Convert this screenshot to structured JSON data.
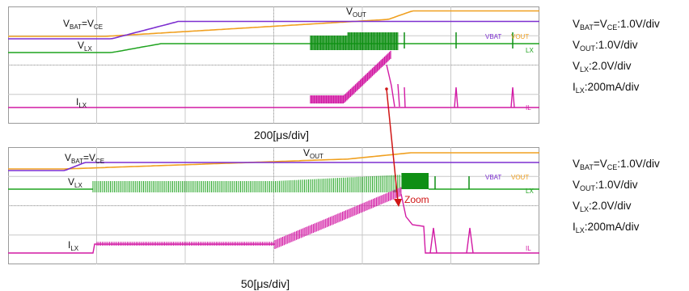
{
  "colors": {
    "vbat": "#7d2fd0",
    "vout": "#f0a020",
    "vlx": "#1fa31f",
    "vlx_dense": "#0f8f14",
    "ilx": "#d21aa4",
    "grid": "#c8c8c8",
    "zoom": "#d01616"
  },
  "chart_data": [
    {
      "type": "line",
      "timebase": "200[μs/div]",
      "scales": [
        "VBAT=VCE:1.0V/div",
        "VOUT:1.0V/div",
        "VLX:2.0V/div",
        "ILX:200mA/div"
      ],
      "trace_labels": {
        "vbat": {
          "main": "V",
          "sub": "BAT",
          "eq": "=V",
          "sub2": "CE"
        },
        "vout": {
          "main": "V",
          "sub": "OUT"
        },
        "vlx": {
          "main": "V",
          "sub": "LX"
        },
        "ilx": {
          "main": "I",
          "sub": "LX"
        }
      },
      "channel_tags": [
        "VBAT",
        "VOUT",
        "LX",
        "IL"
      ]
    },
    {
      "type": "line",
      "timebase": "50[μs/div]",
      "scales": [
        "VBAT=VCE:1.0V/div",
        "VOUT:1.0V/div",
        "VLX:2.0V/div",
        "ILX:200mA/div"
      ],
      "trace_labels": {
        "vbat": {
          "main": "V",
          "sub": "BAT",
          "eq": "=V",
          "sub2": "CE"
        },
        "vout": {
          "main": "V",
          "sub": "OUT"
        },
        "vlx": {
          "main": "V",
          "sub": "LX"
        },
        "ilx": {
          "main": "I",
          "sub": "LX"
        }
      },
      "channel_tags": [
        "VBAT",
        "VOUT",
        "LX",
        "IL"
      ]
    }
  ],
  "annotation": {
    "zoom_label": "Zoom"
  },
  "scales_text": {
    "top": [
      {
        "a": "V",
        "as": "BAT",
        "b": "=V",
        "bs": "CE",
        "c": ":1.0V/div"
      },
      {
        "a": "V",
        "as": "OUT",
        "b": "",
        "bs": "",
        "c": ":1.0V/div"
      },
      {
        "a": "V",
        "as": "LX",
        "b": "",
        "bs": "",
        "c": ":2.0V/div"
      },
      {
        "a": "I",
        "as": "LX",
        "b": "",
        "bs": "",
        "c": ":200mA/div"
      }
    ],
    "bottom": [
      {
        "a": "V",
        "as": "BAT",
        "b": "=V",
        "bs": "CE",
        "c": ":1.0V/div"
      },
      {
        "a": "V",
        "as": "OUT",
        "b": "",
        "bs": "",
        "c": ":1.0V/div"
      },
      {
        "a": "V",
        "as": "LX",
        "b": "",
        "bs": "",
        "c": ":2.0V/div"
      },
      {
        "a": "I",
        "as": "LX",
        "b": "",
        "bs": "",
        "c": ":200mA/div"
      }
    ]
  }
}
